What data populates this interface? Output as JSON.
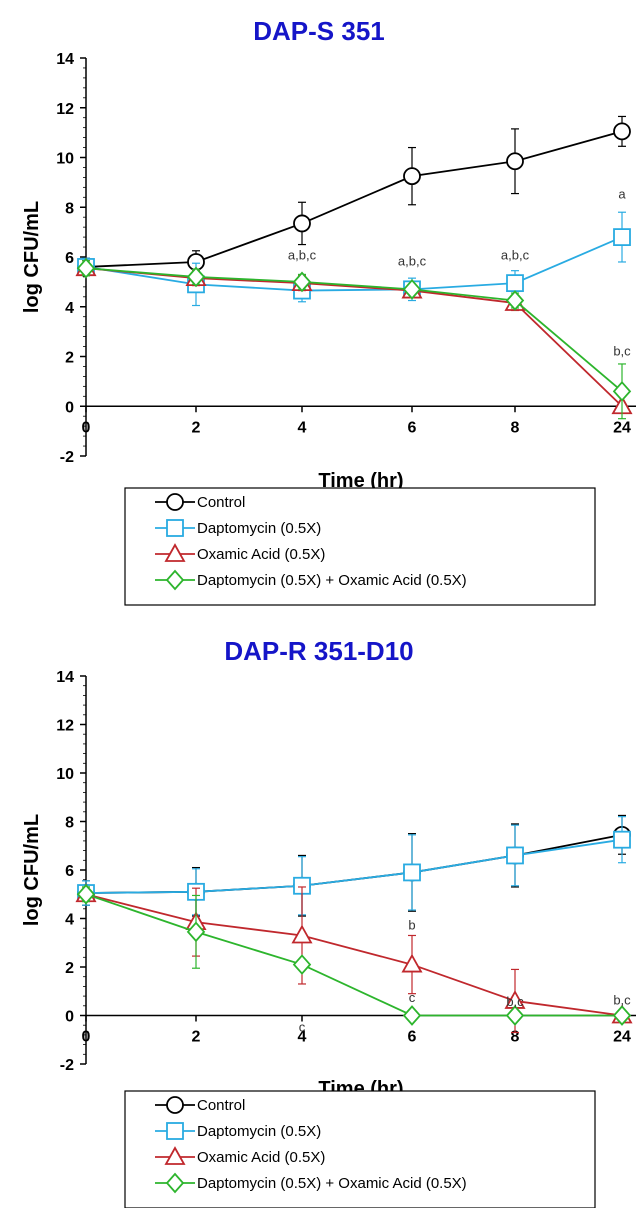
{
  "chart_data": [
    {
      "type": "line",
      "title": "DAP-S 351",
      "xlabel": "Time (hr)",
      "ylabel": "log CFU/mL",
      "categories": [
        "0",
        "2",
        "4",
        "6",
        "8",
        "24"
      ],
      "ylim": [
        -2,
        14
      ],
      "yticks": [
        "14",
        "12",
        "10",
        "8",
        "6",
        "4",
        "2",
        "0",
        "-2"
      ],
      "series": [
        {
          "name": "Control",
          "color": "#000000",
          "marker": "circle",
          "values": [
            5.6,
            5.8,
            7.35,
            9.25,
            9.85,
            11.05
          ],
          "errors": [
            0.35,
            0.45,
            0.85,
            1.15,
            1.3,
            0.6
          ]
        },
        {
          "name": "Daptomycin (0.5X)",
          "color": "#29ABE2",
          "marker": "square",
          "values": [
            5.6,
            4.9,
            4.65,
            4.7,
            4.95,
            6.8
          ],
          "errors": [
            0.35,
            0.85,
            0.45,
            0.45,
            0.5,
            1.0
          ]
        },
        {
          "name": "Oxamic Acid (0.5X)",
          "color": "#C0282D",
          "marker": "triangle",
          "values": [
            5.55,
            5.15,
            4.95,
            4.65,
            4.15,
            0.0
          ],
          "errors": [
            0.3,
            0.3,
            0.3,
            0.2,
            0.3,
            0.0
          ]
        },
        {
          "name": "Daptomycin (0.5X) + Oxamic Acid (0.5X)",
          "color": "#2DB52D",
          "marker": "diamond",
          "values": [
            5.55,
            5.2,
            5.0,
            4.7,
            4.25,
            0.6
          ],
          "errors": [
            0.3,
            0.3,
            0.3,
            0.2,
            0.3,
            1.1
          ]
        }
      ],
      "annotations": [
        {
          "x": "4",
          "y": 5.9,
          "text": "a,b,c"
        },
        {
          "x": "6",
          "y": 5.65,
          "text": "a,b,c"
        },
        {
          "x": "8",
          "y": 5.9,
          "text": "a,b,c"
        },
        {
          "x": "24",
          "y": 8.35,
          "text": "a"
        },
        {
          "x": "24",
          "y": 2.05,
          "text": "b,c"
        }
      ],
      "legend": "bottom"
    },
    {
      "type": "line",
      "title": "DAP-R 351-D10",
      "xlabel": "Time (hr)",
      "ylabel": "log CFU/mL",
      "categories": [
        "0",
        "2",
        "4",
        "6",
        "8",
        "24"
      ],
      "ylim": [
        -2,
        14
      ],
      "yticks": [
        "14",
        "12",
        "10",
        "8",
        "6",
        "4",
        "2",
        "0",
        "-2"
      ],
      "series": [
        {
          "name": "Control",
          "color": "#000000",
          "marker": "circle",
          "values": [
            5.05,
            5.1,
            5.35,
            5.9,
            6.6,
            7.45
          ],
          "errors": [
            0.5,
            1.0,
            1.25,
            1.6,
            1.3,
            0.8
          ]
        },
        {
          "name": "Daptomycin (0.5X)",
          "color": "#29ABE2",
          "marker": "square",
          "values": [
            5.05,
            5.1,
            5.35,
            5.9,
            6.6,
            7.25
          ],
          "errors": [
            0.5,
            0.95,
            1.2,
            1.55,
            1.25,
            0.95
          ]
        },
        {
          "name": "Oxamic Acid (0.5X)",
          "color": "#C0282D",
          "marker": "triangle",
          "values": [
            5.0,
            3.85,
            3.3,
            2.1,
            0.6,
            0.0
          ],
          "errors": [
            0.3,
            1.4,
            2.0,
            1.2,
            1.3,
            0.0
          ]
        },
        {
          "name": "Daptomycin (0.5X) + Oxamic Acid (0.5X)",
          "color": "#2DB52D",
          "marker": "diamond",
          "values": [
            5.0,
            3.45,
            2.1,
            0.0,
            0.0,
            0.0
          ],
          "errors": [
            0.3,
            1.5,
            0.0,
            0.0,
            0.0,
            0.0
          ]
        }
      ],
      "annotations": [
        {
          "x": "4",
          "y": -0.65,
          "text": "c"
        },
        {
          "x": "6",
          "y": 3.55,
          "text": "b"
        },
        {
          "x": "6",
          "y": 0.55,
          "text": "c"
        },
        {
          "x": "8",
          "y": 0.4,
          "text": "b,c"
        },
        {
          "x": "24",
          "y": 0.45,
          "text": "b,c"
        }
      ],
      "legend": "bottom"
    }
  ]
}
